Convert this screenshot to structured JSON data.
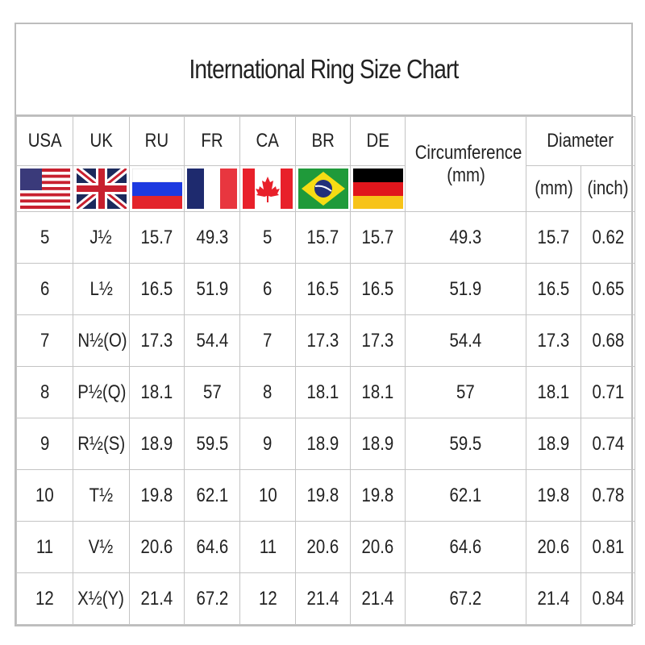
{
  "title": "International Ring Size Chart",
  "headers": {
    "usa": "USA",
    "uk": "UK",
    "ru": "RU",
    "fr": "FR",
    "ca": "CA",
    "br": "BR",
    "de": "DE",
    "circumference": "Circumference",
    "circumference_unit": "(mm)",
    "diameter": "Diameter",
    "diameter_mm": "(mm)",
    "diameter_inch": "(inch)"
  },
  "flags": [
    "usa-flag-icon",
    "uk-flag-icon",
    "russia-flag-icon",
    "france-flag-icon",
    "canada-flag-icon",
    "brazil-flag-icon",
    "germany-flag-icon"
  ],
  "rows": [
    [
      "5",
      "J½",
      "15.7",
      "49.3",
      "5",
      "15.7",
      "15.7",
      "49.3",
      "15.7",
      "0.62"
    ],
    [
      "6",
      "L½",
      "16.5",
      "51.9",
      "6",
      "16.5",
      "16.5",
      "51.9",
      "16.5",
      "0.65"
    ],
    [
      "7",
      "N½(O)",
      "17.3",
      "54.4",
      "7",
      "17.3",
      "17.3",
      "54.4",
      "17.3",
      "0.68"
    ],
    [
      "8",
      "P½(Q)",
      "18.1",
      "57",
      "8",
      "18.1",
      "18.1",
      "57",
      "18.1",
      "0.71"
    ],
    [
      "9",
      "R½(S)",
      "18.9",
      "59.5",
      "9",
      "18.9",
      "18.9",
      "59.5",
      "18.9",
      "0.74"
    ],
    [
      "10",
      "T½",
      "19.8",
      "62.1",
      "10",
      "19.8",
      "19.8",
      "62.1",
      "19.8",
      "0.78"
    ],
    [
      "11",
      "V½",
      "20.6",
      "64.6",
      "11",
      "20.6",
      "20.6",
      "64.6",
      "20.6",
      "0.81"
    ],
    [
      "12",
      "X½(Y)",
      "21.4",
      "67.2",
      "12",
      "21.4",
      "21.4",
      "67.2",
      "21.4",
      "0.84"
    ]
  ]
}
